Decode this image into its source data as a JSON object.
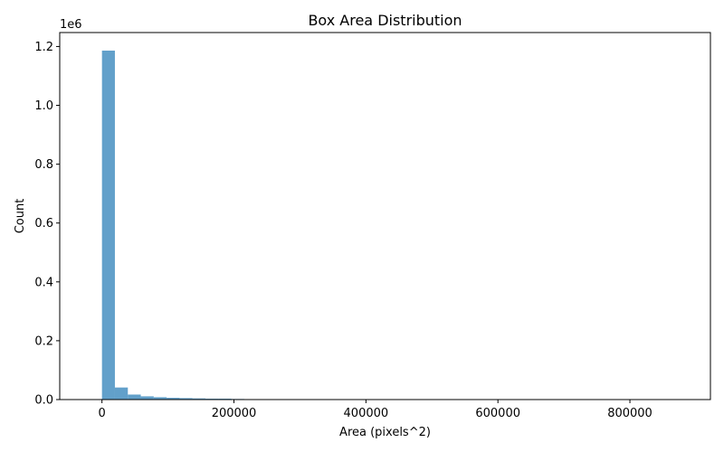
{
  "chart_data": {
    "type": "bar",
    "title": "Box Area Distribution",
    "xlabel": "Area (pixels^2)",
    "ylabel": "Count",
    "y_offset_text": "1e6",
    "xlim": [
      -64000,
      922000
    ],
    "ylim": [
      0,
      1.2474
    ],
    "x_ticks": [
      0,
      200000,
      400000,
      600000,
      800000
    ],
    "x_tick_labels": [
      "0",
      "200000",
      "400000",
      "600000",
      "800000"
    ],
    "y_ticks": [
      0.0,
      0.2,
      0.4,
      0.6,
      0.8,
      1.0,
      1.2
    ],
    "y_tick_labels": [
      "0.0",
      "0.2",
      "0.4",
      "0.6",
      "0.8",
      "1.0",
      "1.2"
    ],
    "grid": false,
    "bar_color": "#1f77b4",
    "bar_opacity": 0.7,
    "bins": [
      {
        "x0": 0,
        "x1": 19600,
        "value": 1.186
      },
      {
        "x0": 19600,
        "x1": 39200,
        "value": 0.041
      },
      {
        "x0": 39200,
        "x1": 58800,
        "value": 0.017
      },
      {
        "x0": 58800,
        "x1": 78400,
        "value": 0.011
      },
      {
        "x0": 78400,
        "x1": 98000,
        "value": 0.008
      },
      {
        "x0": 98000,
        "x1": 117600,
        "value": 0.006
      },
      {
        "x0": 117600,
        "x1": 137200,
        "value": 0.005
      },
      {
        "x0": 137200,
        "x1": 156800,
        "value": 0.004
      },
      {
        "x0": 156800,
        "x1": 176400,
        "value": 0.003
      },
      {
        "x0": 176400,
        "x1": 196000,
        "value": 0.003
      },
      {
        "x0": 196000,
        "x1": 215600,
        "value": 0.002
      },
      {
        "x0": 215600,
        "x1": 235200,
        "value": 0.001
      }
    ]
  }
}
